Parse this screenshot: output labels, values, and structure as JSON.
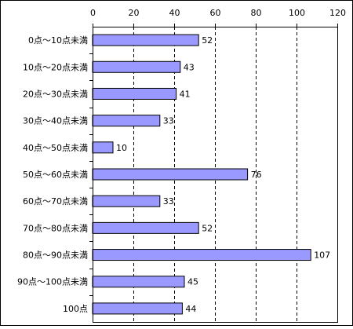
{
  "chart_data": {
    "type": "bar",
    "orientation": "horizontal",
    "categories": [
      "0点～10点未満",
      "10点～20点未満",
      "20点～30点未満",
      "30点～40点未満",
      "40点～50点未満",
      "50点～60点未満",
      "60点～70点未満",
      "70点～80点未満",
      "80点～90点未満",
      "90点～100点未満",
      "100点"
    ],
    "values": [
      52,
      43,
      41,
      33,
      10,
      76,
      33,
      52,
      107,
      45,
      44
    ],
    "xlim": [
      0,
      120
    ],
    "xticks": [
      0,
      20,
      40,
      60,
      80,
      100,
      120
    ],
    "x_axis_position": "top",
    "grid": "vertical dashed",
    "legend": "none",
    "data_labels": true,
    "colors": {
      "bar_fill": "#9999ff",
      "bar_stroke": "#000000",
      "grid": "#000000",
      "frame": "#000000"
    }
  }
}
